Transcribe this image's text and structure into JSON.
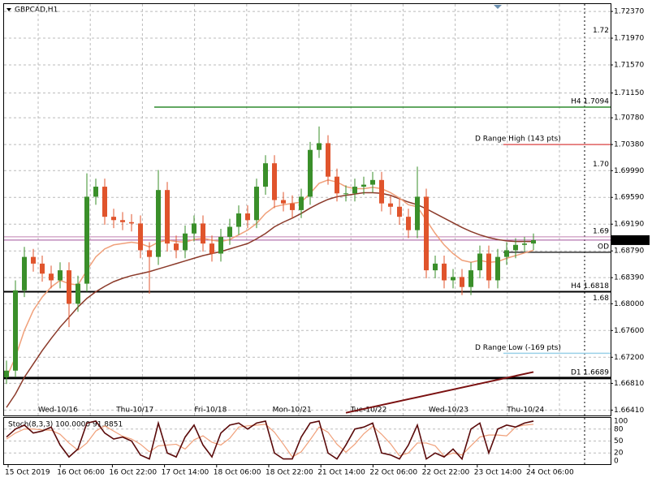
{
  "chart_data": {
    "type": "candlestick",
    "title": "GBPCAD,H1",
    "ylim": [
      1.6633,
      1.7248
    ],
    "yticks": [
      {
        "value": 1.7237,
        "label": "1.72370"
      },
      {
        "value": 1.7197,
        "label": "1.71970"
      },
      {
        "value": 1.7157,
        "label": "1.71570"
      },
      {
        "value": 1.7115,
        "label": "1.71150"
      },
      {
        "value": 1.7078,
        "label": "1.70780"
      },
      {
        "value": 1.7038,
        "label": "1.70380"
      },
      {
        "value": 1.6999,
        "label": "1.69990"
      },
      {
        "value": 1.6959,
        "label": "1.69590"
      },
      {
        "value": 1.6919,
        "label": "1.69190"
      },
      {
        "value": 1.6879,
        "label": "1.68790"
      },
      {
        "value": 1.6839,
        "label": "1.68390"
      },
      {
        "value": 1.68,
        "label": "1.68000"
      },
      {
        "value": 1.676,
        "label": "1.67600"
      },
      {
        "value": 1.672,
        "label": "1.67200"
      },
      {
        "value": 1.6681,
        "label": "1.66810"
      },
      {
        "value": 1.6641,
        "label": "1.66410"
      }
    ],
    "grid": true,
    "up_color": "#3a8f2a",
    "down_color": "#e0542c",
    "x_labels": [
      "15 Oct 2019",
      "16 Oct 06:00",
      "16 Oct 22:00",
      "17 Oct 14:00",
      "18 Oct 06:00",
      "18 Oct 22:00",
      "21 Oct 14:00",
      "22 Oct 06:00",
      "22 Oct 22:00",
      "23 Oct 14:00",
      "24 Oct 06:00"
    ],
    "day_labels": [
      "Wed-10/16",
      "Thu-10/17",
      "Fri-10/18",
      "Mon-10/21",
      "Tue-10/22",
      "Wed-10/23",
      "Thu-10/24"
    ],
    "candles": [
      [
        1.669,
        1.6715,
        1.668,
        1.67
      ],
      [
        1.67,
        1.6835,
        1.669,
        1.682
      ],
      [
        1.682,
        1.6885,
        1.681,
        1.687
      ],
      [
        1.687,
        1.6882,
        1.6848,
        1.686
      ],
      [
        1.686,
        1.6872,
        1.6833,
        1.6845
      ],
      [
        1.6845,
        1.6857,
        1.6823,
        1.6835
      ],
      [
        1.6835,
        1.6862,
        1.6823,
        1.685
      ],
      [
        1.685,
        1.6862,
        1.6765,
        1.68
      ],
      [
        1.68,
        1.6842,
        1.6788,
        1.683
      ],
      [
        1.683,
        1.6995,
        1.6818,
        1.696
      ],
      [
        1.696,
        1.6987,
        1.6948,
        1.6975
      ],
      [
        1.6975,
        1.6987,
        1.6918,
        1.693
      ],
      [
        1.693,
        1.6942,
        1.6913,
        1.6925
      ],
      [
        1.6925,
        1.6937,
        1.691,
        1.6922
      ],
      [
        1.6922,
        1.6934,
        1.6908,
        1.692
      ],
      [
        1.692,
        1.6932,
        1.6868,
        1.688
      ],
      [
        1.688,
        1.6892,
        1.6815,
        1.687
      ],
      [
        1.687,
        1.7,
        1.6858,
        1.697
      ],
      [
        1.697,
        1.6982,
        1.6878,
        1.689
      ],
      [
        1.689,
        1.6902,
        1.6868,
        1.688
      ],
      [
        1.688,
        1.6917,
        1.6868,
        1.6905
      ],
      [
        1.6905,
        1.6932,
        1.6893,
        1.692
      ],
      [
        1.692,
        1.6932,
        1.6878,
        1.689
      ],
      [
        1.689,
        1.6902,
        1.6863,
        1.6875
      ],
      [
        1.6875,
        1.6912,
        1.6863,
        1.69
      ],
      [
        1.69,
        1.6927,
        1.6888,
        1.6915
      ],
      [
        1.6915,
        1.6947,
        1.6903,
        1.6935
      ],
      [
        1.6935,
        1.6947,
        1.6913,
        1.6925
      ],
      [
        1.6925,
        1.6987,
        1.6913,
        1.6975
      ],
      [
        1.6975,
        1.7022,
        1.6963,
        1.701
      ],
      [
        1.701,
        1.7022,
        1.6943,
        1.6955
      ],
      [
        1.6955,
        1.6967,
        1.6938,
        1.695
      ],
      [
        1.695,
        1.6962,
        1.6928,
        1.694
      ],
      [
        1.694,
        1.6972,
        1.6928,
        1.696
      ],
      [
        1.696,
        1.7042,
        1.6948,
        1.703
      ],
      [
        1.703,
        1.7065,
        1.7018,
        1.704
      ],
      [
        1.704,
        1.7052,
        1.6978,
        1.699
      ],
      [
        1.699,
        1.7002,
        1.6953,
        1.6965
      ],
      [
        1.6965,
        1.6977,
        1.6953,
        1.6965
      ],
      [
        1.6965,
        1.6987,
        1.6953,
        1.6975
      ],
      [
        1.6975,
        1.699,
        1.6963,
        1.6978
      ],
      [
        1.6978,
        1.6997,
        1.6966,
        1.6985
      ],
      [
        1.6985,
        1.6997,
        1.6938,
        1.695
      ],
      [
        1.695,
        1.6962,
        1.6933,
        1.6945
      ],
      [
        1.6945,
        1.6957,
        1.6918,
        1.693
      ],
      [
        1.693,
        1.6942,
        1.6898,
        1.691
      ],
      [
        1.691,
        1.7005,
        1.6898,
        1.696
      ],
      [
        1.696,
        1.6972,
        1.6838,
        1.685
      ],
      [
        1.685,
        1.6872,
        1.6838,
        1.686
      ],
      [
        1.686,
        1.6872,
        1.6823,
        1.6835
      ],
      [
        1.6835,
        1.6852,
        1.6823,
        1.684
      ],
      [
        1.684,
        1.6852,
        1.6813,
        1.6825
      ],
      [
        1.6825,
        1.6862,
        1.6813,
        1.685
      ],
      [
        1.685,
        1.6887,
        1.6838,
        1.6875
      ],
      [
        1.6875,
        1.6887,
        1.6823,
        1.6835
      ],
      [
        1.6835,
        1.6882,
        1.6823,
        1.687
      ],
      [
        1.687,
        1.6892,
        1.6858,
        1.688
      ],
      [
        1.688,
        1.6898,
        1.6868,
        1.6888
      ],
      [
        1.6888,
        1.69,
        1.6878,
        1.689
      ],
      [
        1.689,
        1.6905,
        1.688,
        1.6895
      ]
    ],
    "series": [
      {
        "color": "#8b3a2a",
        "values": [
          1.6645,
          1.6665,
          1.669,
          1.671,
          1.673,
          1.6748,
          1.6765,
          1.678,
          1.6795,
          1.6808,
          1.6818,
          1.6826,
          1.6833,
          1.6838,
          1.6842,
          1.6845,
          1.6848,
          1.6852,
          1.6856,
          1.686,
          1.6864,
          1.6868,
          1.6872,
          1.6875,
          1.6878,
          1.6882,
          1.6886,
          1.689,
          1.6897,
          1.6905,
          1.6915,
          1.6922,
          1.6928,
          1.6935,
          1.6943,
          1.695,
          1.6956,
          1.696,
          1.6962,
          1.6964,
          1.6966,
          1.6966,
          1.6965,
          1.6962,
          1.6957,
          1.6952,
          1.6948,
          1.6942,
          1.6935,
          1.6928,
          1.6921,
          1.6914,
          1.6908,
          1.6903,
          1.6899,
          1.6896,
          1.6894,
          1.6893,
          1.6893,
          1.6893
        ]
      },
      {
        "color": "#f0a07a",
        "values": [
          1.669,
          1.672,
          1.676,
          1.679,
          1.681,
          1.6825,
          1.6835,
          1.683,
          1.6828,
          1.685,
          1.687,
          1.6882,
          1.6888,
          1.689,
          1.6892,
          1.689,
          1.6885,
          1.6892,
          1.6895,
          1.6893,
          1.6892,
          1.6896,
          1.6898,
          1.6895,
          1.6893,
          1.6896,
          1.6903,
          1.691,
          1.692,
          1.6935,
          1.6945,
          1.6948,
          1.695,
          1.6952,
          1.6965,
          1.698,
          1.6985,
          1.6982,
          1.6975,
          1.6972,
          1.6972,
          1.6974,
          1.6972,
          1.6966,
          1.6958,
          1.6948,
          1.6945,
          1.6925,
          1.6905,
          1.6888,
          1.6875,
          1.6865,
          1.6862,
          1.6865,
          1.6862,
          1.6863,
          1.6868,
          1.6872,
          1.6876,
          1.688
        ]
      }
    ],
    "trend_line": {
      "color": "#7a1010",
      "values": [
        1.6637,
        1.6698
      ]
    },
    "levels": [
      {
        "label": "H4 1.7094",
        "value": 1.7094,
        "color": "#2e8b2e"
      },
      {
        "label": "D Range High (143 pts)",
        "value": 1.7038,
        "color": "#e06060"
      },
      {
        "label": "OD",
        "value": 1.6877,
        "color": "#333"
      },
      {
        "label": "H4 1.6818",
        "value": 1.6818,
        "color": "#000"
      },
      {
        "label": "D Range Low (-169 pts)",
        "value": 1.6726,
        "color": "#9ad0e8"
      },
      {
        "label": "D1 1.6689",
        "value": 1.6689,
        "color": "#000"
      }
    ],
    "round_levels": [
      1.72,
      {
        "value": 1.7,
        "label": "1.70"
      },
      1.69,
      1.68
    ],
    "current_price": 1.68951,
    "stoch": {
      "title": "Stoch(8,3,3) 100.0000 91.8851",
      "ylim": [
        -8,
        108
      ],
      "yticks": [
        0,
        20,
        50,
        80,
        100
      ],
      "main": {
        "color": "#5a0a0a",
        "values": [
          60,
          80,
          90,
          70,
          75,
          85,
          40,
          10,
          30,
          95,
          100,
          70,
          55,
          60,
          50,
          15,
          5,
          95,
          20,
          10,
          60,
          90,
          40,
          10,
          70,
          90,
          95,
          80,
          95,
          100,
          20,
          5,
          5,
          60,
          95,
          100,
          20,
          5,
          40,
          80,
          85,
          95,
          20,
          15,
          5,
          40,
          90,
          5,
          20,
          10,
          30,
          5,
          80,
          95,
          20,
          80,
          90,
          85,
          95,
          100
        ]
      },
      "signal": {
        "color": "#f0a07a",
        "values": [
          55,
          70,
          80,
          80,
          78,
          77,
          67,
          45,
          27,
          45,
          75,
          88,
          75,
          62,
          55,
          42,
          23,
          38,
          40,
          42,
          30,
          53,
          63,
          47,
          40,
          57,
          85,
          88,
          90,
          92,
          72,
          42,
          10,
          23,
          53,
          85,
          72,
          42,
          22,
          42,
          68,
          87,
          67,
          43,
          13,
          20,
          45,
          45,
          38,
          12,
          20,
          15,
          38,
          60,
          65,
          65,
          63,
          85,
          90,
          91.8851
        ]
      }
    }
  }
}
